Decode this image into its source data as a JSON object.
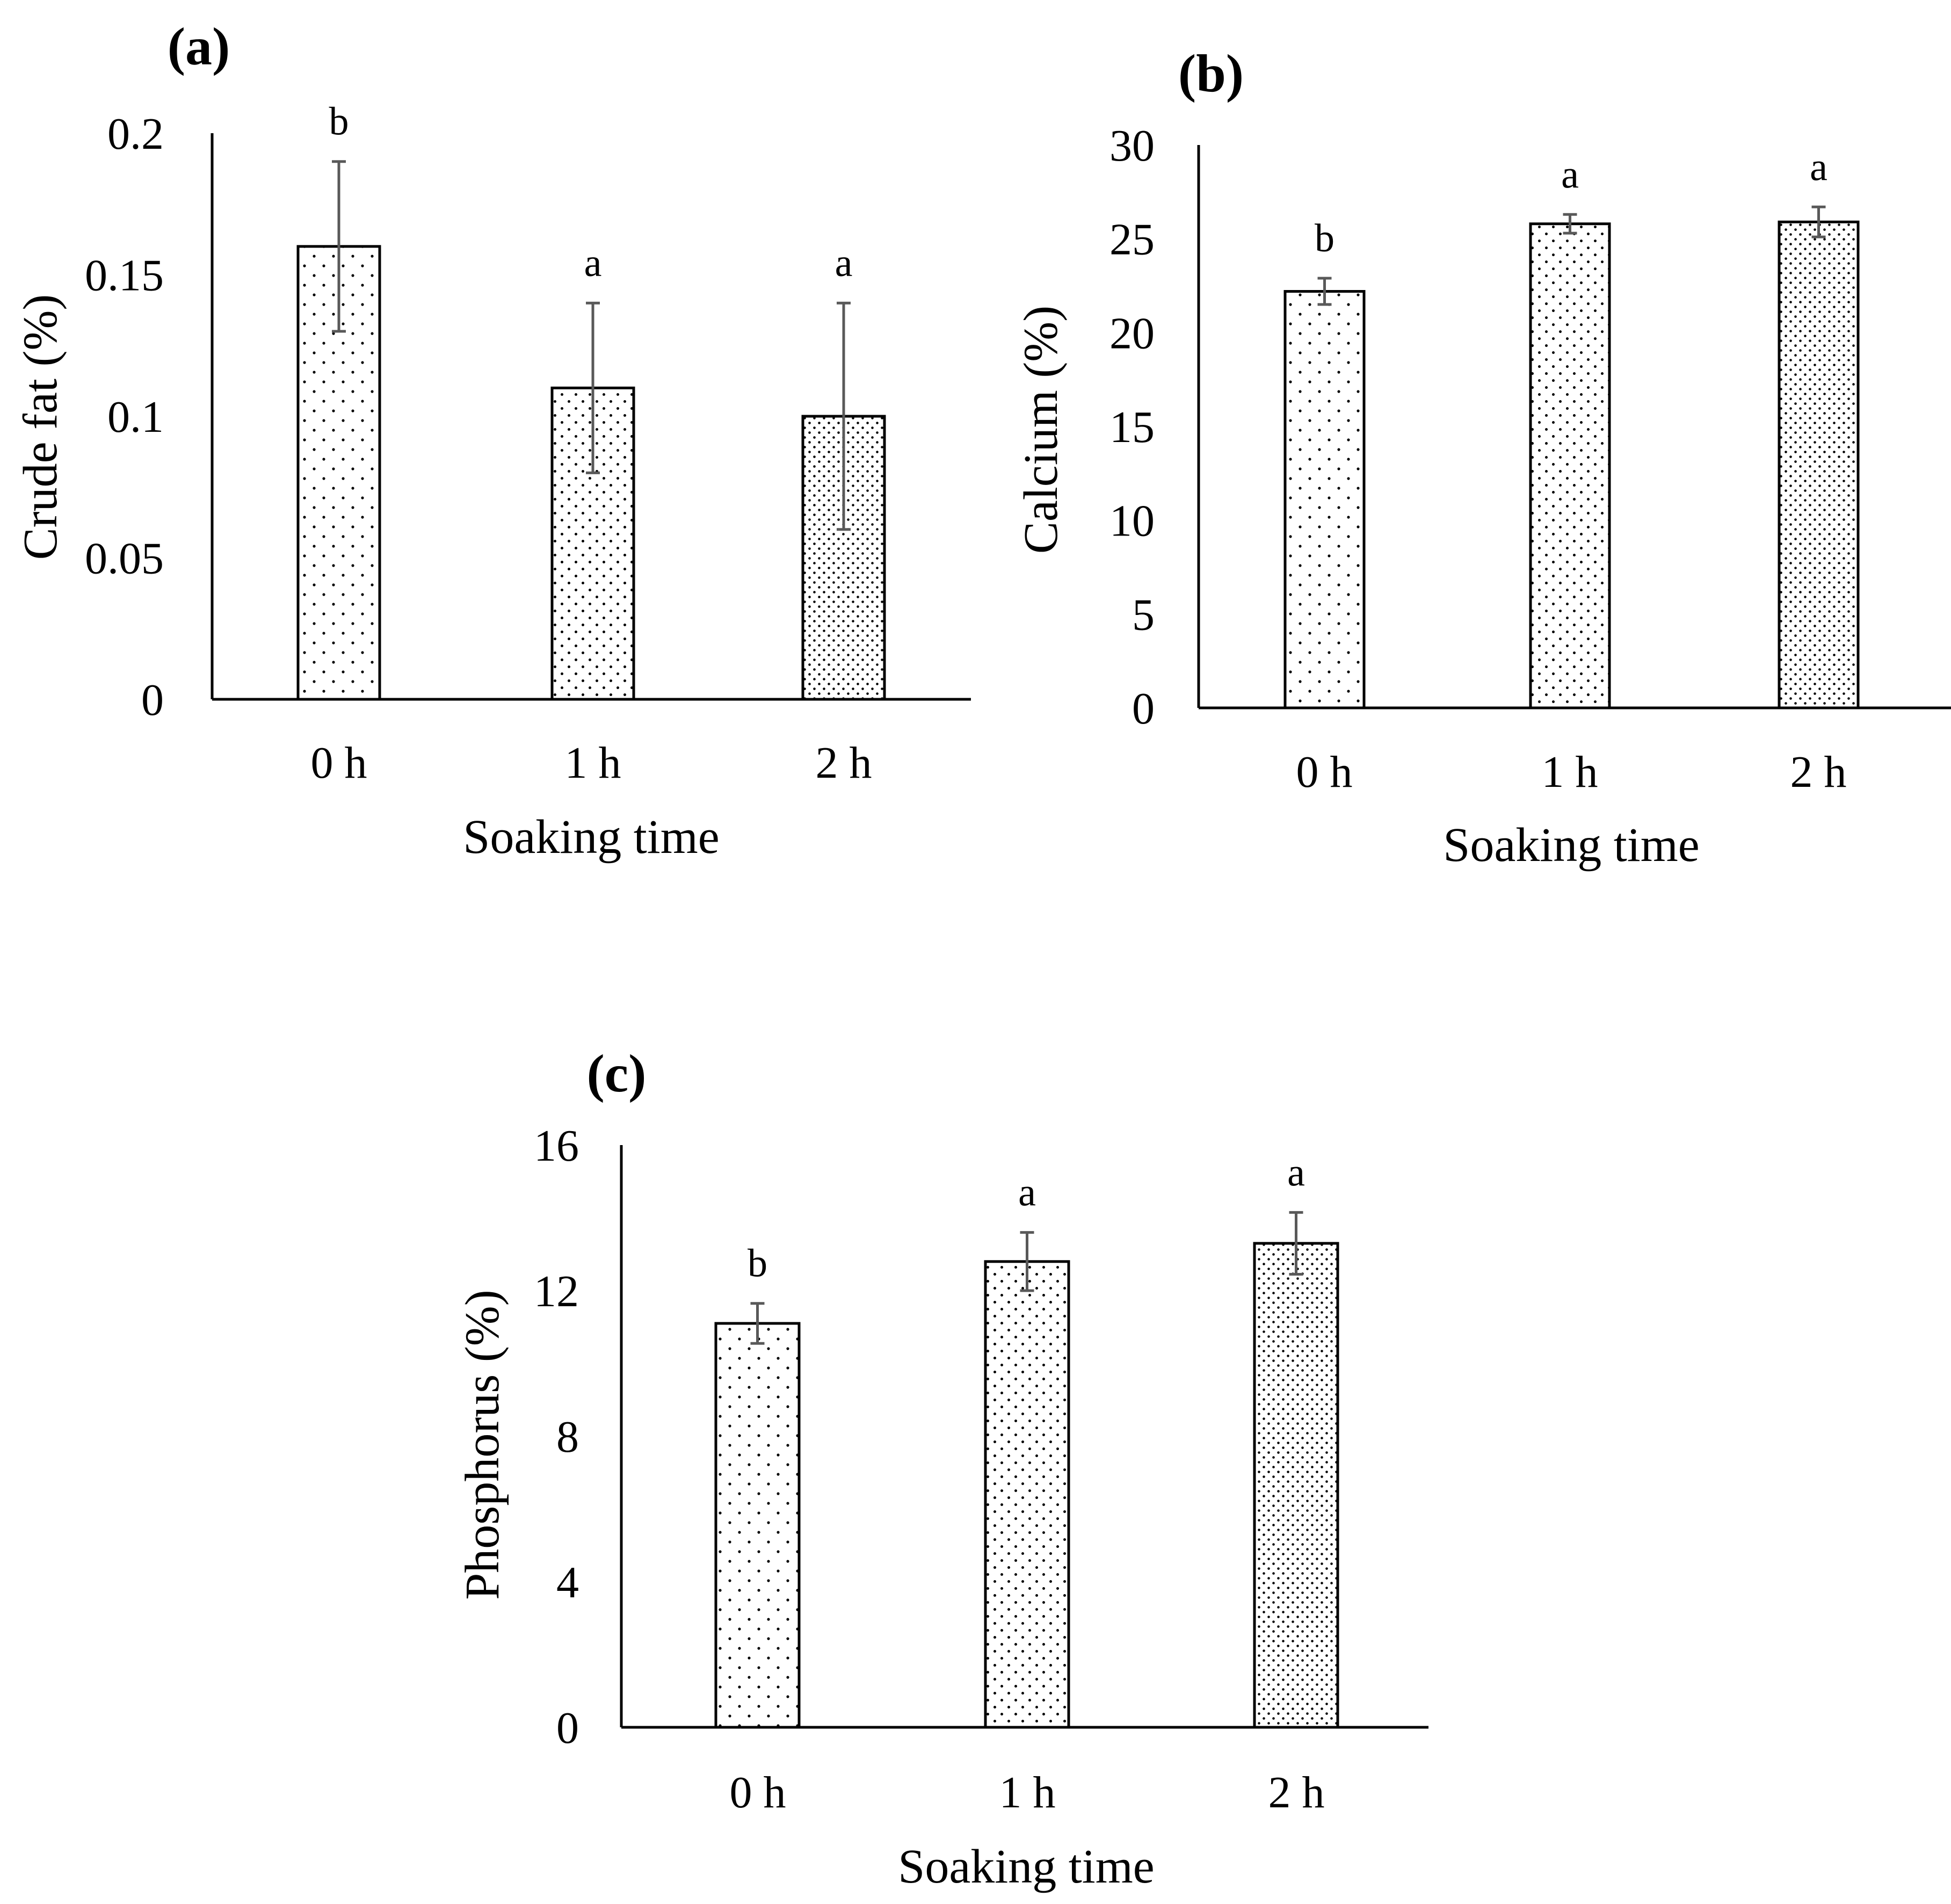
{
  "chart_data": [
    {
      "panel": "(a)",
      "type": "bar",
      "categories": [
        "0 h",
        "1 h",
        "2 h"
      ],
      "values": [
        0.16,
        0.11,
        0.1
      ],
      "errors": [
        0.03,
        0.03,
        0.04
      ],
      "significance": [
        "b",
        "a",
        "a"
      ],
      "ylim": [
        0,
        0.2
      ],
      "yticks": [
        "0",
        "0.05",
        "0.1",
        "0.15",
        "0.2"
      ],
      "xlabel": "Soaking time",
      "ylabel": "Crude fat  (%)",
      "grid": false,
      "legend": "none"
    },
    {
      "panel": "(b)",
      "type": "bar",
      "categories": [
        "0 h",
        "1 h",
        "2 h"
      ],
      "values": [
        22.2,
        25.8,
        25.9
      ],
      "errors": [
        0.7,
        0.5,
        0.8
      ],
      "significance": [
        "b",
        "a",
        "a"
      ],
      "ylim": [
        0,
        30
      ],
      "yticks": [
        "0",
        "5",
        "10",
        "15",
        "20",
        "25",
        "30"
      ],
      "xlabel": "Soaking time",
      "ylabel": "Calcium (%)",
      "grid": false,
      "legend": "none"
    },
    {
      "panel": "(c)",
      "type": "bar",
      "categories": [
        "0 h",
        "1 h",
        "2 h"
      ],
      "values": [
        11.1,
        12.8,
        13.3
      ],
      "errors": [
        0.55,
        0.8,
        0.85
      ],
      "significance": [
        "b",
        "a",
        "a"
      ],
      "ylim": [
        0,
        16
      ],
      "yticks": [
        "0",
        "4",
        "8",
        "12",
        "16"
      ],
      "xlabel": "Soaking time",
      "ylabel": "Phosphorus (%)",
      "grid": false,
      "legend": "none"
    }
  ],
  "colors": {
    "axis": "#000000",
    "bar_fill": "#ffffff",
    "bar_stroke": "#000000",
    "dots": "#000000",
    "error_bar": "#595959"
  }
}
